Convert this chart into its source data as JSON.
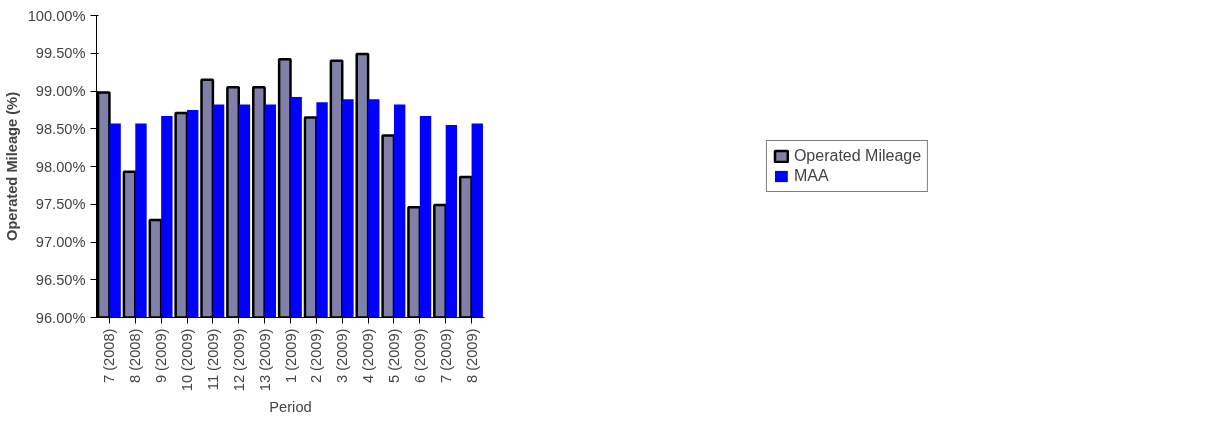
{
  "chart_data": {
    "type": "bar",
    "xlabel": "Period",
    "ylabel": "Operated Mileage (%)",
    "categories": [
      "7 (2008)",
      "8 (2008)",
      "9 (2009)",
      "10 (2009)",
      "11 (2009)",
      "12 (2009)",
      "13 (2009)",
      "1 (2009)",
      "2 (2009)",
      "3 (2009)",
      "4 (2009)",
      "5 (2009)",
      "6 (2009)",
      "7 (2009)",
      "8 (2009)"
    ],
    "series": [
      {
        "name": "Operated Mileage",
        "color": "#8080a8",
        "values": [
          98.98,
          97.93,
          97.29,
          98.71,
          99.15,
          99.05,
          99.05,
          99.42,
          98.65,
          99.4,
          99.49,
          98.41,
          97.46,
          97.49,
          97.86
        ]
      },
      {
        "name": "MAA",
        "color": "#0000ff",
        "values": [
          98.57,
          98.57,
          98.67,
          98.75,
          98.82,
          98.82,
          98.82,
          98.92,
          98.85,
          98.89,
          98.89,
          98.82,
          98.67,
          98.55,
          98.57
        ]
      }
    ],
    "ylim": [
      96,
      100
    ],
    "yticks": [
      {
        "value": 96,
        "label": "96.00%"
      },
      {
        "value": 96.5,
        "label": "96.50%"
      },
      {
        "value": 97,
        "label": "97.00%"
      },
      {
        "value": 97.5,
        "label": "97.50%"
      },
      {
        "value": 98,
        "label": "98.00%"
      },
      {
        "value": 98.5,
        "label": "98.50%"
      },
      {
        "value": 99,
        "label": "99.00%"
      },
      {
        "value": 99.5,
        "label": "99.50%"
      },
      {
        "value": 100,
        "label": "100.00%"
      }
    ],
    "grid": false,
    "legend": "right"
  }
}
